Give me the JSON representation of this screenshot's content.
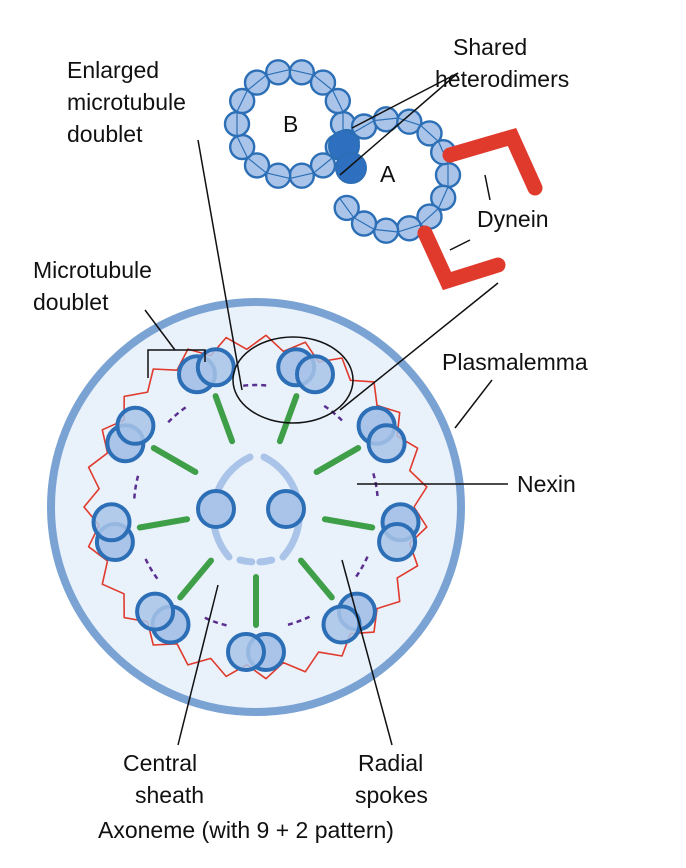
{
  "labels": {
    "shared_heterodimers": [
      "Shared",
      "heterodimers"
    ],
    "enlarged_doublet": [
      "Enlarged",
      "microtubule",
      "doublet"
    ],
    "tubule_a": "A",
    "tubule_b": "B",
    "dynein": "Dynein",
    "microtubule_doublet": [
      "Microtubule",
      "doublet"
    ],
    "plasmalemma": "Plasmalemma",
    "nexin": "Nexin",
    "central_sheath": [
      "Central",
      "sheath"
    ],
    "radial_spokes": [
      "Radial",
      "spokes"
    ],
    "caption": "Axoneme (with 9 + 2 pattern)"
  },
  "colors": {
    "tubulin_fill": "#a9c4e8",
    "tubulin_stroke": "#2c6fb6",
    "shared_dimer": "#2f6fc0",
    "dynein": "#e03a2c",
    "radial_spoke": "#3f9f48",
    "nexin": "#5a2f8f",
    "membrane": "#7aa3d4",
    "cytoplasm": "#e9f1fb",
    "leader": "#111111"
  },
  "icons": {
    "doublet": "microtubule-doublet-icon",
    "central_pair": "central-microtubule-icon"
  }
}
